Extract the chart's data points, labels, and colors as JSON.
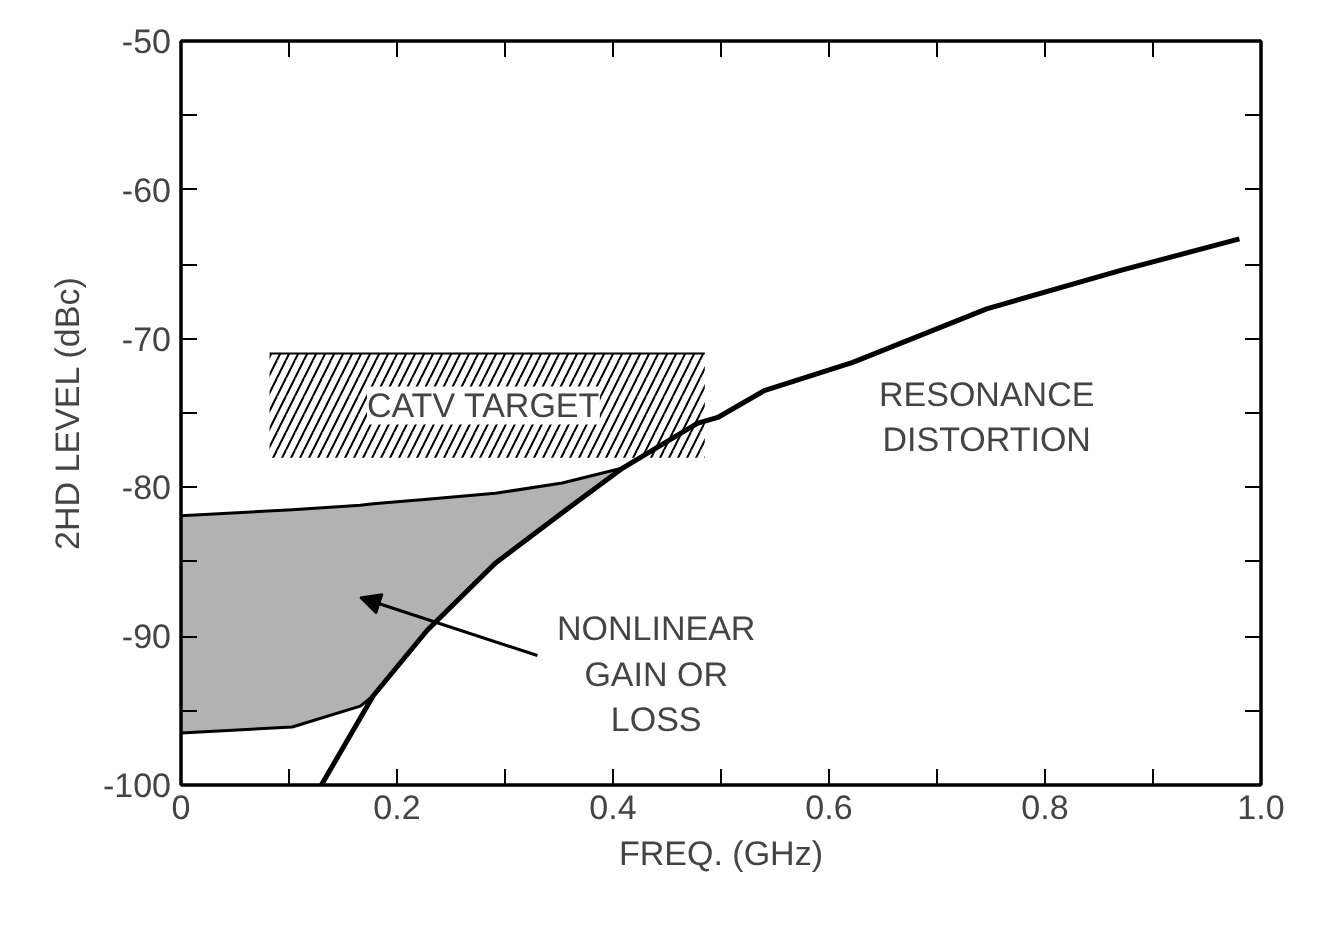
{
  "chart_data": {
    "type": "line",
    "xlabel": "FREQ. (GHz)",
    "ylabel": "2HD LEVEL (dBc)",
    "xlim": [
      0,
      1.0
    ],
    "ylim": [
      -100,
      -50
    ],
    "xticks": [
      0,
      {
        "value": 0.1,
        "label": null
      },
      0.2,
      {
        "value": 0.3,
        "label": null
      },
      0.4,
      {
        "value": 0.5,
        "label": null
      },
      0.6,
      {
        "value": 0.7,
        "label": null
      },
      0.8,
      {
        "value": 0.9,
        "label": null
      },
      {
        "value": 1.0,
        "label": "1.0"
      }
    ],
    "yticks": [
      -100,
      {
        "value": -95,
        "label": null
      },
      -90,
      {
        "value": -85,
        "label": null
      },
      -80,
      {
        "value": -75,
        "label": null
      },
      -70,
      {
        "value": -65,
        "label": null
      },
      -60,
      {
        "value": -55,
        "label": null
      },
      -50
    ],
    "grid": false,
    "series": [
      {
        "color": "#000000",
        "x": [
          0,
          0.103,
          0.166,
          0.178,
          0.228,
          0.291,
          0.353,
          0.409
        ],
        "values": [
          -81.9,
          -81.5,
          -81.2,
          -81.1,
          -80.8,
          -80.4,
          -79.7,
          -78.7
        ],
        "upper": [
          -81.9,
          -81.5,
          -81.2,
          -81.1,
          -80.8,
          -80.4,
          -79.7,
          -78.7
        ],
        "lower": [
          -96.5,
          -96.1,
          -94.7,
          -94.0,
          -89.6,
          -85.1,
          -81.7,
          -78.7
        ]
      },
      {
        "color": "#000000",
        "x": [
          0.082,
          0.485
        ],
        "values": [
          -71,
          -71
        ],
        "upper": [
          -71,
          -71
        ],
        "lower": [
          -78,
          -78
        ]
      },
      {
        "color": "#000000",
        "x": [
          0,
          0.103,
          0.166,
          0.178
        ],
        "values": [
          -96.5,
          -96.1,
          -94.7,
          -94.0
        ]
      },
      {
        "color": "#000000",
        "x": [
          0.13,
          0.178,
          0.228,
          0.291,
          0.353,
          0.409,
          0.478,
          0.497,
          0.54,
          0.622,
          0.746,
          0.871,
          0.98
        ],
        "values": [
          -100,
          -94.0,
          -89.6,
          -85.1,
          -81.7,
          -78.7,
          -75.7,
          -75.3,
          -73.5,
          -71.6,
          -68.0,
          -65.4,
          -63.3
        ]
      }
    ],
    "annotations": [
      "CATV TARGET",
      "RESONANCE\nDISTORTION",
      "NONLINEAR\nGAIN OR\nLOSS"
    ]
  }
}
